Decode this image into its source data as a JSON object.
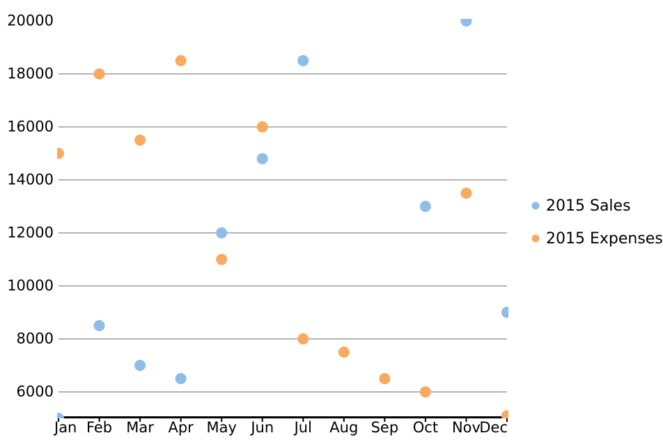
{
  "chart_data": {
    "type": "scatter",
    "categories": [
      "Jan",
      "Feb",
      "Mar",
      "Apr",
      "May",
      "Jun",
      "Jul",
      "Aug",
      "Sep",
      "Oct",
      "Nov",
      "Dec"
    ],
    "series": [
      {
        "name": "2015 Sales",
        "color": "#8FBCE8",
        "values": [
          5000,
          8500,
          7000,
          6500,
          12000,
          14800,
          18500,
          null,
          null,
          13000,
          20000,
          9000
        ]
      },
      {
        "name": "2015 Expenses",
        "color": "#F8AB5E",
        "values": [
          15000,
          18000,
          15500,
          18500,
          11000,
          16000,
          8000,
          7500,
          6500,
          6000,
          13500,
          5100
        ]
      }
    ],
    "yticks": [
      20000,
      18000,
      16000,
      14000,
      12000,
      10000,
      8000,
      6000
    ],
    "ylim": [
      5000,
      20000
    ],
    "grid": true,
    "gridline_color": "#868686",
    "axis_color": "#000000",
    "point_radius": 8,
    "legend_position": "right",
    "notes": "Sales points for Aug and Sep are not visible; edge points are clipped at the plot area boundary"
  }
}
